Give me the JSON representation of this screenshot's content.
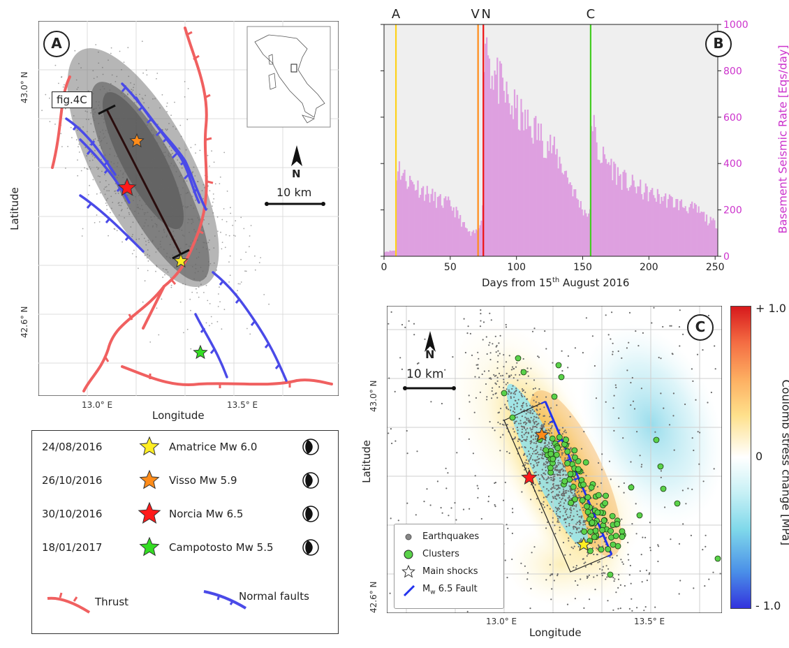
{
  "panelA": {
    "label": "A",
    "fig_label": "fig.4C",
    "north": "N",
    "scale": "10 km",
    "lat_ticks": [
      "43.0° N",
      "42.6° N"
    ],
    "lon_ticks": [
      "13.0° E",
      "13.5° E"
    ],
    "xlabel": "Longitude",
    "ylabel": "Latitude"
  },
  "legendA": {
    "entries": [
      {
        "date": "24/08/2016",
        "name": "Amatrice Mw 6.0",
        "color": "#ffee22"
      },
      {
        "date": "26/10/2016",
        "name": "Visso Mw 5.9",
        "color": "#ff8c1a"
      },
      {
        "date": "30/10/2016",
        "name": "Norcia Mw 6.5",
        "color": "#ff1a1a"
      },
      {
        "date": "18/01/2017",
        "name": "Campotosto Mw 5.5",
        "color": "#33dd22"
      }
    ],
    "thrust_label": "Thrust",
    "normal_label": "Normal faults",
    "thrust_color": "#f06060",
    "normal_color": "#4a4ae8"
  },
  "chart_data": [
    {
      "type": "bar",
      "panel": "B",
      "xlabel": "Days from 15th August 2016",
      "xlabel_parts": [
        "Days from 15",
        "th",
        " August 2016"
      ],
      "ylabel": "Basement Seismic Rate [Eqs/day]",
      "xlim": [
        0,
        252
      ],
      "ylim": [
        0,
        1000
      ],
      "x_ticks": [
        0,
        50,
        100,
        150,
        200,
        250
      ],
      "y_ticks": [
        0,
        200,
        400,
        600,
        800,
        1000
      ],
      "bar_color": "#dea0e0",
      "ylabel_color": "#cc33cc",
      "markers": [
        {
          "label": "A",
          "day": 9,
          "color": "#ffd21a"
        },
        {
          "label": "V",
          "day": 71,
          "color": "#ff8c1a"
        },
        {
          "label": "N",
          "day": 75,
          "color": "#ee1111"
        },
        {
          "label": "C",
          "day": 156,
          "color": "#44cc22"
        }
      ],
      "series_keyframes": [
        [
          0,
          20
        ],
        [
          8,
          25
        ],
        [
          9,
          350
        ],
        [
          10,
          400
        ],
        [
          12,
          370
        ],
        [
          15,
          340
        ],
        [
          20,
          320
        ],
        [
          25,
          300
        ],
        [
          30,
          280
        ],
        [
          35,
          260
        ],
        [
          40,
          240
        ],
        [
          45,
          230
        ],
        [
          50,
          220
        ],
        [
          55,
          180
        ],
        [
          60,
          130
        ],
        [
          65,
          90
        ],
        [
          70,
          110
        ],
        [
          74,
          200
        ],
        [
          75,
          900
        ],
        [
          76,
          960
        ],
        [
          78,
          900
        ],
        [
          80,
          820
        ],
        [
          85,
          760
        ],
        [
          90,
          700
        ],
        [
          95,
          650
        ],
        [
          100,
          620
        ],
        [
          105,
          580
        ],
        [
          110,
          560
        ],
        [
          115,
          540
        ],
        [
          120,
          500
        ],
        [
          125,
          480
        ],
        [
          130,
          430
        ],
        [
          135,
          380
        ],
        [
          140,
          320
        ],
        [
          145,
          250
        ],
        [
          150,
          200
        ],
        [
          155,
          180
        ],
        [
          156,
          580
        ],
        [
          157,
          600
        ],
        [
          160,
          460
        ],
        [
          165,
          420
        ],
        [
          170,
          400
        ],
        [
          175,
          360
        ],
        [
          180,
          330
        ],
        [
          185,
          310
        ],
        [
          190,
          300
        ],
        [
          195,
          280
        ],
        [
          200,
          270
        ],
        [
          205,
          260
        ],
        [
          210,
          250
        ],
        [
          215,
          240
        ],
        [
          220,
          230
        ],
        [
          225,
          220
        ],
        [
          230,
          210
        ],
        [
          235,
          200
        ],
        [
          240,
          180
        ],
        [
          245,
          150
        ],
        [
          251,
          140
        ]
      ]
    },
    {
      "type": "heatmap",
      "panel": "C",
      "xlabel": "Longitude",
      "ylabel": "Latitude",
      "lat_ticks": [
        "43.0° N",
        "42.6° N"
      ],
      "lon_ticks": [
        "13.0° E",
        "13.5° E"
      ],
      "colorbar_label": "Coulomb stress change [MPa]",
      "colorbar_ticks": [
        "+ 1.0",
        "0",
        "- 1.0"
      ],
      "colorbar_range": [
        -1.0,
        1.0
      ],
      "legend": [
        "Earthquakes",
        "Clusters",
        "Main shocks",
        "Mw 6.5 Fault"
      ],
      "legend_fault_parts": [
        "M",
        "w",
        " 6.5 Fault"
      ]
    }
  ],
  "panelB": {
    "label": "B"
  },
  "panelC": {
    "label": "C",
    "north": "N",
    "scale": "10 km"
  }
}
